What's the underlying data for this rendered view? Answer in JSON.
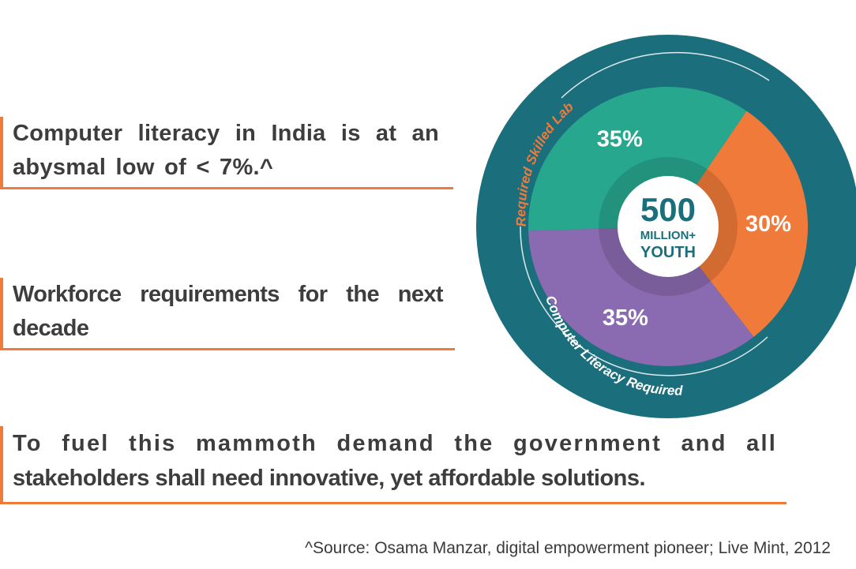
{
  "statements": {
    "s1": "Computer literacy in India is at an abysmal low of < 7%.^",
    "s2": "Workforce requirements for the next decade",
    "s3_line1": "To fuel this mammoth demand the government and all",
    "s3_line2": "stakeholders shall need innovative, yet affordable solutions."
  },
  "source": "^Source: Osama Manzar, digital empowerment pioneer; Live Mint, 2012",
  "colors": {
    "accent": "#f07a3a",
    "teal_ring": "#1b6f7d",
    "green": "#27a78e",
    "orange": "#f07a3a",
    "purple": "#8a6ab0"
  },
  "chart_data": {
    "type": "pie",
    "center": {
      "value": "500",
      "line2": "MILLION+",
      "line3": "YOUTH"
    },
    "slices": [
      {
        "label": "35%",
        "value": 35,
        "color": "#27a78e"
      },
      {
        "label": "30%",
        "value": 30,
        "color": "#f07a3a"
      },
      {
        "label": "35%",
        "value": 35,
        "color": "#8a6ab0"
      }
    ],
    "ring_labels": {
      "left": "Required Skilled Labour",
      "bottom": "Computer Literacy Required"
    }
  }
}
